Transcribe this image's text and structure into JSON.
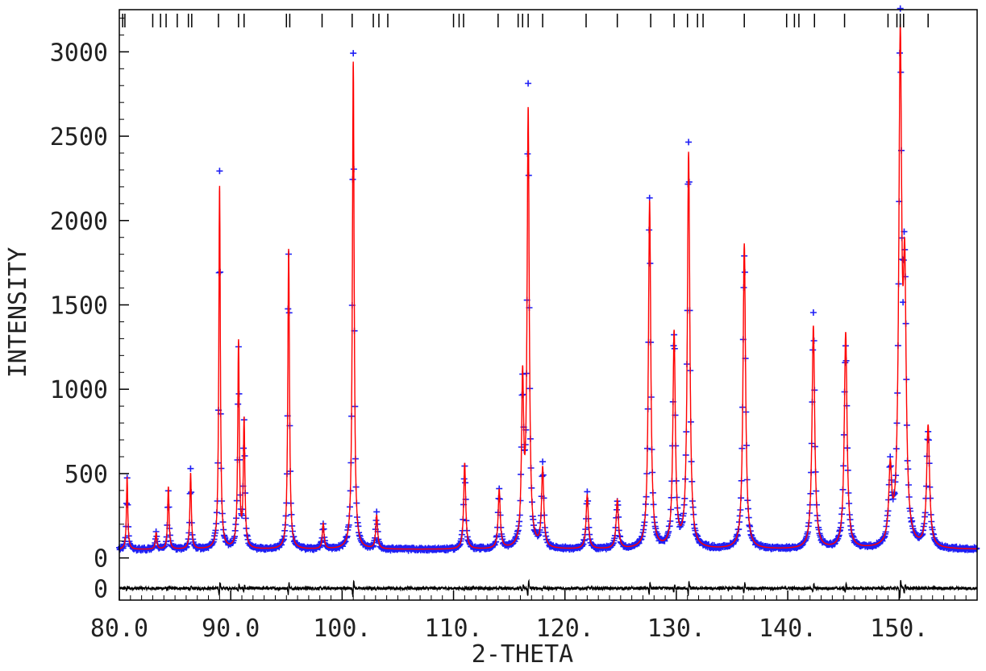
{
  "chart_data": {
    "type": "line",
    "xlabel": "2-THETA",
    "ylabel": "INTENSITY",
    "xlim": [
      80.0,
      157.0
    ],
    "ylim": [
      -250,
      3250
    ],
    "x_tick_labels": [
      {
        "x": 80,
        "label": "80.0"
      },
      {
        "x": 90,
        "label": "90.0"
      },
      {
        "x": 100,
        "label": "100."
      },
      {
        "x": 110,
        "label": "110."
      },
      {
        "x": 120,
        "label": "120."
      },
      {
        "x": 130,
        "label": "130."
      },
      {
        "x": 140,
        "label": "140."
      },
      {
        "x": 150,
        "label": "150."
      }
    ],
    "y_tick_labels": [
      {
        "y": 0,
        "label": "0"
      },
      {
        "y": 500,
        "label": "500"
      },
      {
        "y": 1000,
        "label": "1000"
      },
      {
        "y": 1500,
        "label": "1500"
      },
      {
        "y": 2000,
        "label": "2000"
      },
      {
        "y": 2500,
        "label": "2500"
      },
      {
        "y": 3000,
        "label": "3000"
      }
    ],
    "difference_zero_label": {
      "y": -180,
      "label": "0"
    },
    "background": 50,
    "difference_offset": -180,
    "peaks": [
      {
        "x": 80.7,
        "height": 480
      },
      {
        "x": 83.3,
        "height": 150
      },
      {
        "x": 84.4,
        "height": 420
      },
      {
        "x": 86.4,
        "height": 500
      },
      {
        "x": 89.0,
        "height": 2200
      },
      {
        "x": 90.7,
        "height": 1270
      },
      {
        "x": 91.2,
        "height": 800
      },
      {
        "x": 95.2,
        "height": 1830
      },
      {
        "x": 98.3,
        "height": 200
      },
      {
        "x": 101.0,
        "height": 2940
      },
      {
        "x": 103.1,
        "height": 250
      },
      {
        "x": 111.0,
        "height": 560
      },
      {
        "x": 114.1,
        "height": 400
      },
      {
        "x": 116.2,
        "height": 1010
      },
      {
        "x": 116.7,
        "height": 2620
      },
      {
        "x": 118.0,
        "height": 520
      },
      {
        "x": 122.0,
        "height": 370
      },
      {
        "x": 124.7,
        "height": 340
      },
      {
        "x": 127.6,
        "height": 2110
      },
      {
        "x": 129.8,
        "height": 1320
      },
      {
        "x": 131.1,
        "height": 2390
      },
      {
        "x": 136.1,
        "height": 1860
      },
      {
        "x": 142.3,
        "height": 1370
      },
      {
        "x": 145.2,
        "height": 1330
      },
      {
        "x": 149.2,
        "height": 480
      },
      {
        "x": 150.1,
        "height": 2960
      },
      {
        "x": 150.5,
        "height": 1500
      },
      {
        "x": 152.6,
        "height": 770
      }
    ],
    "reflection_markers": [
      80.3,
      80.5,
      83.0,
      83.7,
      84.2,
      85.2,
      86.2,
      86.5,
      88.9,
      90.7,
      91.2,
      95.0,
      95.3,
      98.2,
      100.9,
      102.8,
      103.3,
      104.1,
      110.0,
      110.5,
      110.9,
      114.0,
      115.8,
      116.2,
      116.7,
      118.0,
      121.9,
      124.7,
      127.7,
      129.8,
      131.0,
      131.9,
      132.4,
      136.1,
      139.9,
      140.6,
      141.0,
      142.4,
      145.1,
      149.0,
      149.8,
      150.1,
      150.4,
      152.6
    ],
    "colors": {
      "observed": "#1f1ff5",
      "calculated": "#ff0000",
      "difference": "#000000",
      "reflection_markers": "#000000",
      "axes": "#000000"
    },
    "observed_marker": "+"
  }
}
